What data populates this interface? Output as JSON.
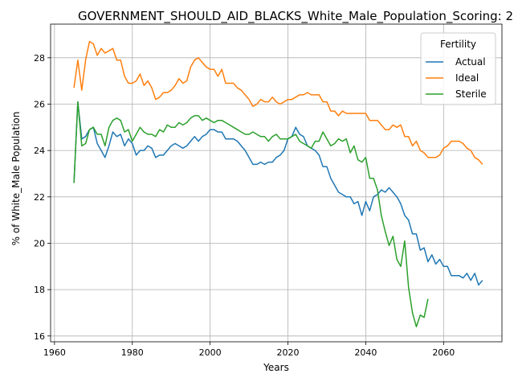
{
  "chart_data": {
    "type": "line",
    "title": "GOVERNMENT_SHOULD_AID_BLACKS_White_Male_Population_Scoring: 2",
    "xlabel": "Years",
    "ylabel": "% of White_Male Population",
    "xlim": [
      1959,
      2075
    ],
    "ylim": [
      15.75,
      29.45
    ],
    "xticks": [
      1960,
      1980,
      2000,
      2020,
      2040,
      2060
    ],
    "yticks": [
      16,
      18,
      20,
      22,
      24,
      26,
      28
    ],
    "grid": true,
    "legend": {
      "title": "Fertility",
      "placement": "top-right"
    },
    "colors": {
      "Actual": "#1f77b4",
      "Ideal": "#ff7f0e",
      "Sterile": "#2ca02c"
    },
    "series": [
      {
        "name": "Actual",
        "x": [
          1965,
          1966,
          1967,
          1968,
          1969,
          1970,
          1971,
          1972,
          1973,
          1974,
          1975,
          1976,
          1977,
          1978,
          1979,
          1980,
          1981,
          1982,
          1983,
          1984,
          1985,
          1986,
          1987,
          1988,
          1989,
          1990,
          1991,
          1992,
          1993,
          1994,
          1995,
          1996,
          1997,
          1998,
          1999,
          2000,
          2001,
          2002,
          2003,
          2004,
          2005,
          2006,
          2007,
          2008,
          2009,
          2010,
          2011,
          2012,
          2013,
          2014,
          2015,
          2016,
          2017,
          2018,
          2019,
          2020,
          2021,
          2022,
          2023,
          2024,
          2025,
          2026,
          2027,
          2028,
          2029,
          2030,
          2031,
          2032,
          2033,
          2034,
          2035,
          2036,
          2037,
          2038,
          2039,
          2040,
          2041,
          2042,
          2043,
          2044,
          2045,
          2046,
          2047,
          2048,
          2049,
          2050,
          2051,
          2052,
          2053,
          2054,
          2055,
          2056,
          2057,
          2058,
          2059,
          2060,
          2061,
          2062,
          2063,
          2064,
          2065,
          2066,
          2067,
          2068,
          2069,
          2070
        ],
        "values": [
          22.6,
          26.1,
          24.5,
          24.6,
          24.9,
          25.0,
          24.3,
          24.0,
          23.7,
          24.2,
          24.8,
          24.6,
          24.7,
          24.2,
          24.5,
          24.3,
          23.8,
          24.0,
          24.0,
          24.2,
          24.1,
          23.7,
          23.8,
          23.8,
          24.0,
          24.2,
          24.3,
          24.2,
          24.1,
          24.2,
          24.4,
          24.6,
          24.4,
          24.6,
          24.7,
          24.9,
          24.9,
          24.8,
          24.8,
          24.5,
          24.5,
          24.5,
          24.4,
          24.2,
          24.0,
          23.7,
          23.4,
          23.4,
          23.5,
          23.4,
          23.5,
          23.5,
          23.7,
          23.8,
          24.0,
          24.5,
          24.6,
          25.0,
          24.7,
          24.6,
          24.2,
          24.1,
          24.0,
          23.8,
          23.3,
          23.3,
          22.8,
          22.5,
          22.2,
          22.1,
          22.0,
          22.0,
          21.7,
          21.8,
          21.2,
          21.8,
          21.4,
          22.0,
          22.1,
          22.3,
          22.2,
          22.4,
          22.2,
          22.0,
          21.7,
          21.2,
          21.0,
          20.4,
          20.4,
          19.7,
          19.8,
          19.2,
          19.5,
          19.1,
          19.3,
          19.0,
          19.0,
          18.6,
          18.6,
          18.6,
          18.5,
          18.7,
          18.4,
          18.7,
          18.2,
          18.4
        ]
      },
      {
        "name": "Ideal",
        "x": [
          1965,
          1966,
          1967,
          1968,
          1969,
          1970,
          1971,
          1972,
          1973,
          1974,
          1975,
          1976,
          1977,
          1978,
          1979,
          1980,
          1981,
          1982,
          1983,
          1984,
          1985,
          1986,
          1987,
          1988,
          1989,
          1990,
          1991,
          1992,
          1993,
          1994,
          1995,
          1996,
          1997,
          1998,
          1999,
          2000,
          2001,
          2002,
          2003,
          2004,
          2005,
          2006,
          2007,
          2008,
          2009,
          2010,
          2011,
          2012,
          2013,
          2014,
          2015,
          2016,
          2017,
          2018,
          2019,
          2020,
          2021,
          2022,
          2023,
          2024,
          2025,
          2026,
          2027,
          2028,
          2029,
          2030,
          2031,
          2032,
          2033,
          2034,
          2035,
          2036,
          2037,
          2038,
          2039,
          2040,
          2041,
          2042,
          2043,
          2044,
          2045,
          2046,
          2047,
          2048,
          2049,
          2050,
          2051,
          2052,
          2053,
          2054,
          2055,
          2056,
          2057,
          2058,
          2059,
          2060,
          2061,
          2062,
          2063,
          2064,
          2065,
          2066,
          2067,
          2068,
          2069,
          2070
        ],
        "values": [
          26.7,
          27.9,
          26.6,
          27.9,
          28.7,
          28.6,
          28.1,
          28.4,
          28.2,
          28.3,
          28.4,
          27.9,
          27.9,
          27.2,
          26.9,
          26.9,
          27.0,
          27.3,
          26.8,
          27.0,
          26.7,
          26.2,
          26.3,
          26.5,
          26.5,
          26.6,
          26.8,
          27.1,
          26.9,
          27.0,
          27.6,
          27.9,
          28.0,
          27.8,
          27.6,
          27.5,
          27.5,
          27.2,
          27.5,
          26.9,
          26.9,
          26.9,
          26.7,
          26.6,
          26.4,
          26.2,
          25.9,
          26.0,
          26.2,
          26.1,
          26.1,
          26.3,
          26.1,
          26.0,
          26.1,
          26.2,
          26.2,
          26.3,
          26.4,
          26.4,
          26.5,
          26.4,
          26.4,
          26.4,
          26.1,
          26.1,
          25.7,
          25.7,
          25.5,
          25.7,
          25.6,
          25.6,
          25.6,
          25.6,
          25.6,
          25.6,
          25.3,
          25.3,
          25.3,
          25.1,
          24.9,
          24.9,
          25.1,
          25.0,
          25.1,
          24.6,
          24.6,
          24.2,
          24.4,
          24.0,
          23.9,
          23.7,
          23.7,
          23.7,
          23.8,
          24.1,
          24.2,
          24.4,
          24.4,
          24.4,
          24.3,
          24.1,
          24.0,
          23.7,
          23.6,
          23.4
        ]
      },
      {
        "name": "Sterile",
        "x": [
          1965,
          1966,
          1967,
          1968,
          1969,
          1970,
          1971,
          1972,
          1973,
          1974,
          1975,
          1976,
          1977,
          1978,
          1979,
          1980,
          1981,
          1982,
          1983,
          1984,
          1985,
          1986,
          1987,
          1988,
          1989,
          1990,
          1991,
          1992,
          1993,
          1994,
          1995,
          1996,
          1997,
          1998,
          1999,
          2000,
          2001,
          2002,
          2003,
          2004,
          2005,
          2006,
          2007,
          2008,
          2009,
          2010,
          2011,
          2012,
          2013,
          2014,
          2015,
          2016,
          2017,
          2018,
          2019,
          2020,
          2021,
          2022,
          2023,
          2024,
          2025,
          2026,
          2027,
          2028,
          2029,
          2030,
          2031,
          2032,
          2033,
          2034,
          2035,
          2036,
          2037,
          2038,
          2039,
          2040,
          2041,
          2042,
          2043,
          2044,
          2045,
          2046,
          2047,
          2048,
          2049,
          2050,
          2051,
          2052,
          2053,
          2054,
          2055,
          2056
        ],
        "values": [
          22.6,
          26.1,
          24.2,
          24.3,
          24.9,
          25.0,
          24.7,
          24.7,
          24.2,
          25.0,
          25.3,
          25.4,
          25.3,
          24.8,
          24.9,
          24.4,
          24.7,
          25.0,
          24.8,
          24.7,
          24.7,
          24.6,
          24.9,
          24.8,
          25.1,
          25.0,
          25.0,
          25.2,
          25.1,
          25.2,
          25.4,
          25.5,
          25.5,
          25.3,
          25.4,
          25.3,
          25.2,
          25.3,
          25.3,
          25.2,
          25.1,
          25.0,
          24.9,
          24.8,
          24.7,
          24.7,
          24.8,
          24.7,
          24.6,
          24.6,
          24.4,
          24.6,
          24.7,
          24.5,
          24.5,
          24.5,
          24.6,
          24.7,
          24.4,
          24.3,
          24.2,
          24.1,
          24.4,
          24.4,
          24.8,
          24.5,
          24.2,
          24.3,
          24.5,
          24.4,
          24.5,
          23.9,
          24.2,
          23.6,
          23.5,
          23.7,
          22.8,
          22.8,
          22.3,
          21.2,
          20.5,
          19.9,
          20.3,
          19.3,
          19.0,
          20.1,
          18.1,
          17.0,
          16.4,
          16.9,
          16.8,
          17.6
        ]
      }
    ]
  }
}
